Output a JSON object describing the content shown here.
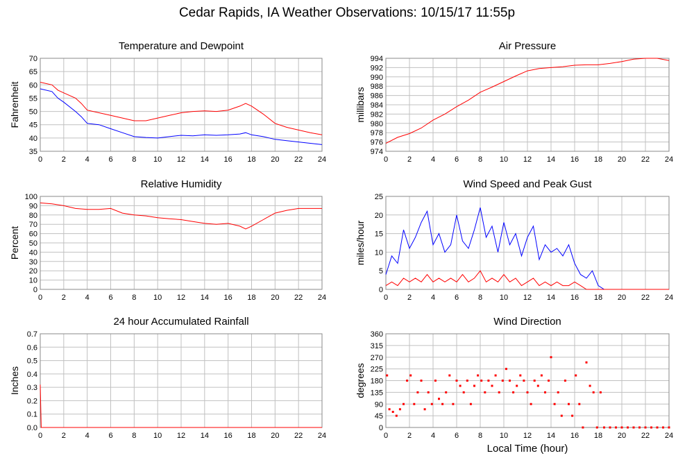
{
  "page": {
    "title": "Cedar Rapids, IA Weather Observations: 10/15/17 11:55p"
  },
  "x_axis_label": "Local Time (hour)",
  "x_ticks": [
    0,
    2,
    4,
    6,
    8,
    10,
    12,
    14,
    16,
    18,
    20,
    22,
    24
  ],
  "colors": {
    "red": "#ff0000",
    "blue": "#0000ff",
    "grid": "#c0c0c0",
    "frame": "#888888"
  },
  "chart_data": [
    {
      "id": "temp",
      "type": "line",
      "title": "Temperature and Dewpoint",
      "xlabel": "",
      "ylabel": "Fahrenheit",
      "xlim": [
        0,
        24
      ],
      "ylim": [
        35,
        70
      ],
      "yticks": [
        35,
        40,
        45,
        50,
        55,
        60,
        65,
        70
      ],
      "grid": true,
      "series": [
        {
          "color": "#ff0000",
          "x": [
            0,
            1,
            1.5,
            2,
            3,
            3.5,
            4,
            5,
            6,
            7,
            8,
            9,
            10,
            11,
            12,
            13,
            14,
            15,
            16,
            17,
            17.5,
            18,
            19,
            20,
            21,
            22,
            23,
            24
          ],
          "y": [
            61,
            60,
            58,
            57,
            55,
            53,
            50.5,
            49.5,
            48.5,
            47.5,
            46.5,
            46.5,
            47.5,
            48.5,
            49.5,
            50,
            50.2,
            50,
            50.5,
            52,
            53,
            52,
            49,
            45.5,
            44,
            43,
            42,
            41.2
          ]
        },
        {
          "color": "#0000ff",
          "x": [
            0,
            1,
            1.5,
            2,
            3,
            3.5,
            4,
            5,
            6,
            7,
            8,
            9,
            10,
            11,
            12,
            13,
            14,
            15,
            16,
            17,
            17.5,
            18,
            19,
            20,
            21,
            22,
            23,
            24
          ],
          "y": [
            58.5,
            57.5,
            55,
            53.5,
            50,
            48,
            45.5,
            45,
            43.5,
            42,
            40.5,
            40.2,
            40,
            40.5,
            41,
            40.8,
            41.2,
            41,
            41.2,
            41.5,
            42,
            41.2,
            40.5,
            39.5,
            39,
            38.5,
            38,
            37.5
          ]
        }
      ]
    },
    {
      "id": "pressure",
      "type": "line",
      "title": "Air Pressure",
      "xlabel": "",
      "ylabel": "millibars",
      "xlim": [
        0,
        24
      ],
      "ylim": [
        974,
        994
      ],
      "yticks": [
        974,
        976,
        978,
        980,
        982,
        984,
        986,
        988,
        990,
        992,
        994
      ],
      "grid": true,
      "series": [
        {
          "color": "#ff0000",
          "x": [
            0,
            1,
            2,
            3,
            4,
            5,
            6,
            7,
            8,
            9,
            10,
            11,
            12,
            13,
            14,
            15,
            16,
            17,
            18,
            19,
            20,
            21,
            22,
            23,
            24
          ],
          "y": [
            975.7,
            977,
            977.8,
            979,
            980.7,
            982,
            983.6,
            985,
            986.7,
            987.8,
            989,
            990.2,
            991.3,
            991.8,
            992,
            992.2,
            992.5,
            992.6,
            992.6,
            992.9,
            993.3,
            993.8,
            994,
            994,
            993.5
          ]
        }
      ]
    },
    {
      "id": "humidity",
      "type": "line",
      "title": "Relative Humidity",
      "xlabel": "",
      "ylabel": "Percent",
      "xlim": [
        0,
        24
      ],
      "ylim": [
        0,
        100
      ],
      "yticks": [
        0,
        10,
        20,
        30,
        40,
        50,
        60,
        70,
        80,
        90,
        100
      ],
      "grid": true,
      "series": [
        {
          "color": "#ff0000",
          "x": [
            0,
            1,
            2,
            3,
            4,
            5,
            6,
            7,
            8,
            9,
            10,
            11,
            12,
            13,
            14,
            15,
            16,
            17,
            17.5,
            18,
            19,
            20,
            21,
            22,
            23,
            24
          ],
          "y": [
            93,
            92,
            90,
            87,
            86,
            86,
            87,
            82,
            80,
            79,
            77,
            76,
            75,
            73,
            71,
            70,
            71,
            68,
            65,
            68,
            75,
            82,
            85,
            87,
            87,
            87
          ]
        }
      ]
    },
    {
      "id": "wind",
      "type": "line",
      "title": "Wind Speed and Peak Gust",
      "xlabel": "",
      "ylabel": "miles/hour",
      "xlim": [
        0,
        24
      ],
      "ylim": [
        0,
        25
      ],
      "yticks": [
        0,
        5,
        10,
        15,
        20,
        25
      ],
      "grid": true,
      "series": [
        {
          "color": "#0000ff",
          "x": [
            0,
            0.5,
            1,
            1.5,
            2,
            2.5,
            3,
            3.5,
            4,
            4.5,
            5,
            5.5,
            6,
            6.5,
            7,
            7.5,
            8,
            8.5,
            9,
            9.5,
            10,
            10.5,
            11,
            11.5,
            12,
            12.5,
            13,
            13.5,
            14,
            14.5,
            15,
            15.5,
            16,
            16.5,
            17,
            17.5,
            18,
            18.5,
            24
          ],
          "y": [
            4,
            9,
            7,
            16,
            11,
            14,
            18,
            21,
            12,
            15,
            10,
            12,
            20,
            13,
            11,
            16,
            22,
            14,
            17,
            10,
            18,
            12,
            15,
            9,
            14,
            17,
            8,
            12,
            10,
            11,
            9,
            12,
            7,
            4,
            3,
            5,
            1,
            0,
            0
          ]
        },
        {
          "color": "#ff0000",
          "x": [
            0,
            0.5,
            1,
            1.5,
            2,
            2.5,
            3,
            3.5,
            4,
            4.5,
            5,
            5.5,
            6,
            6.5,
            7,
            7.5,
            8,
            8.5,
            9,
            9.5,
            10,
            10.5,
            11,
            11.5,
            12,
            12.5,
            13,
            13.5,
            14,
            14.5,
            15,
            15.5,
            16,
            16.5,
            17,
            24
          ],
          "y": [
            1,
            2,
            1,
            3,
            2,
            3,
            2,
            4,
            2,
            3,
            2,
            3,
            2,
            4,
            2,
            3,
            5,
            2,
            3,
            2,
            4,
            2,
            3,
            1,
            2,
            3,
            1,
            2,
            1,
            2,
            1,
            1,
            2,
            1,
            0,
            0
          ]
        }
      ]
    },
    {
      "id": "rain",
      "type": "line",
      "title": "24 hour Accumulated Rainfall",
      "xlabel": "",
      "ylabel": "Inches",
      "xlim": [
        0,
        24
      ],
      "ylim": [
        0,
        0.7
      ],
      "yticks": [
        0.0,
        0.1,
        0.2,
        0.3,
        0.4,
        0.5,
        0.6,
        0.7
      ],
      "ytick_labels": [
        "0.0",
        "0.1",
        "0.2",
        "0.3",
        "0.4",
        "0.5",
        "0.6",
        "0.7"
      ],
      "grid": true,
      "series": [
        {
          "color": "#ff0000",
          "x": [
            0,
            0.08,
            24
          ],
          "y": [
            0.32,
            0,
            0
          ]
        }
      ]
    },
    {
      "id": "direction",
      "type": "scatter",
      "title": "Wind Direction",
      "xlabel": "Local Time (hour)",
      "ylabel": "degrees",
      "xlim": [
        0,
        24
      ],
      "ylim": [
        0,
        360
      ],
      "yticks": [
        0,
        45,
        90,
        135,
        180,
        225,
        270,
        315,
        360
      ],
      "grid": true,
      "series": [
        {
          "color": "#ff0000",
          "x": [
            0.1,
            0.3,
            0.6,
            0.9,
            1.2,
            1.5,
            1.8,
            2.1,
            2.4,
            2.7,
            3.0,
            3.3,
            3.6,
            3.9,
            4.2,
            4.5,
            4.8,
            5.1,
            5.4,
            5.7,
            6.0,
            6.3,
            6.6,
            6.9,
            7.2,
            7.5,
            7.8,
            8.1,
            8.4,
            8.7,
            9.0,
            9.3,
            9.6,
            9.9,
            10.2,
            10.5,
            10.8,
            11.1,
            11.4,
            11.7,
            12.0,
            12.3,
            12.6,
            12.9,
            13.2,
            13.5,
            13.8,
            14.0,
            14.3,
            14.6,
            14.9,
            15.2,
            15.5,
            15.8,
            16.1,
            16.4,
            16.7,
            17.0,
            17.3,
            17.6,
            17.9,
            18.2,
            18.5,
            19.0,
            19.5,
            20.0,
            20.5,
            21.0,
            21.5,
            22.0,
            22.5,
            23.0,
            23.5,
            24.0
          ],
          "y": [
            200,
            70,
            60,
            45,
            70,
            90,
            180,
            200,
            90,
            135,
            180,
            70,
            135,
            90,
            180,
            110,
            90,
            135,
            200,
            90,
            180,
            160,
            135,
            180,
            90,
            160,
            200,
            180,
            135,
            180,
            160,
            200,
            135,
            180,
            225,
            180,
            135,
            160,
            200,
            180,
            135,
            90,
            180,
            160,
            200,
            135,
            180,
            270,
            90,
            135,
            45,
            180,
            90,
            45,
            200,
            90,
            0,
            250,
            160,
            135,
            0,
            135,
            0,
            0,
            0,
            0,
            0,
            0,
            0,
            0,
            0,
            0,
            0,
            0
          ]
        }
      ]
    }
  ]
}
